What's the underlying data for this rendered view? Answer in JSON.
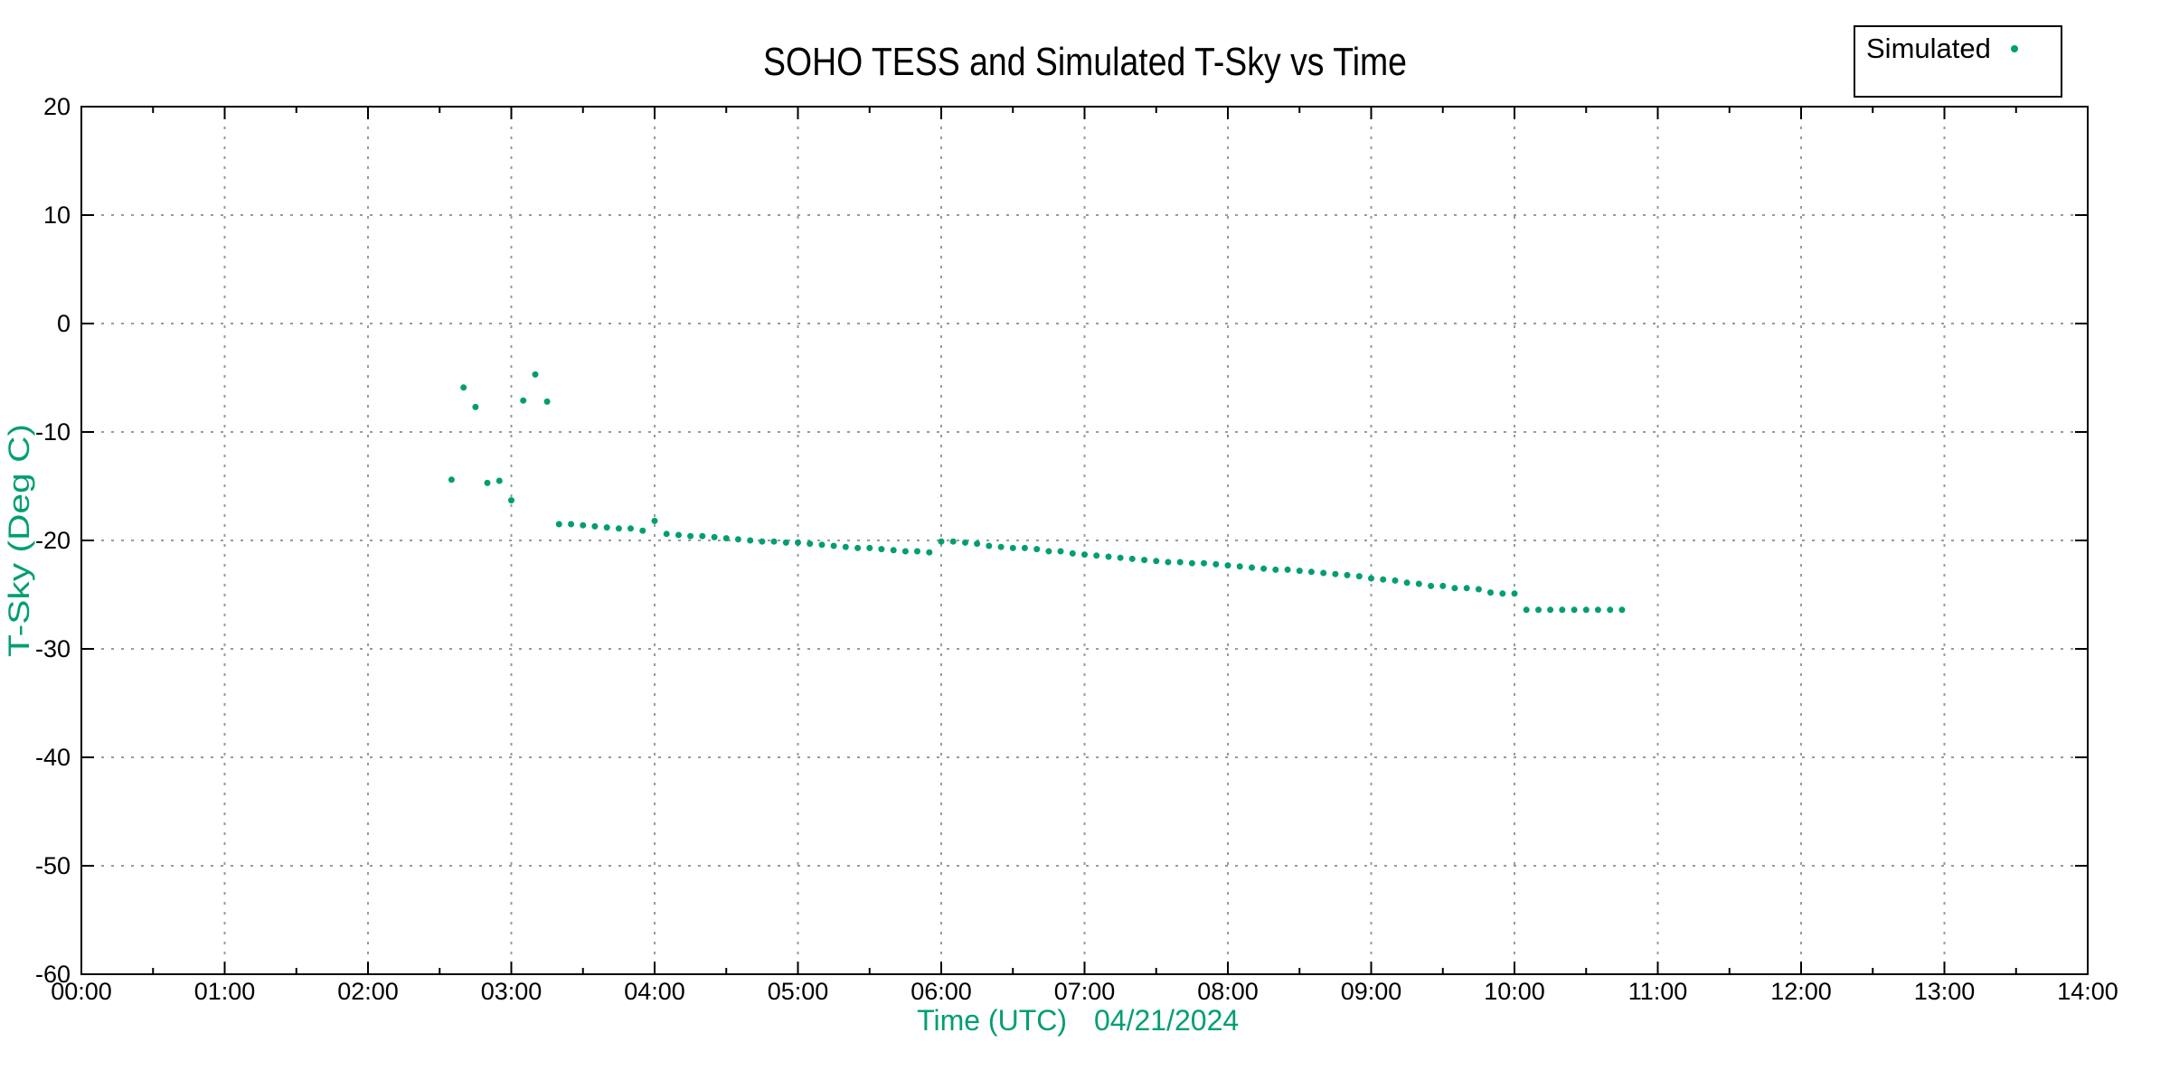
{
  "figure": {
    "background": "#ffffff",
    "text_color": "#000000",
    "accent_color": "#009e73",
    "grid_color": "#9a9a9a",
    "border_color": "#000000"
  },
  "legend": {
    "position": "top-right",
    "entries": [
      {
        "label": "Simulated",
        "marker": "dot-icon",
        "marker_color": "#009e73"
      }
    ]
  },
  "chart_data": {
    "type": "scatter",
    "title": "SOHO TESS and Simulated T-Sky vs Time",
    "xlabel": "Time (UTC)",
    "date_label": "04/21/2024",
    "ylabel": "T-Sky (Deg C)",
    "xlim_hours": [
      0,
      14
    ],
    "ylim": [
      -60,
      20
    ],
    "x_tick_labels": [
      "00:00",
      "01:00",
      "02:00",
      "03:00",
      "04:00",
      "05:00",
      "06:00",
      "07:00",
      "08:00",
      "09:00",
      "10:00",
      "11:00",
      "12:00",
      "13:00",
      "14:00"
    ],
    "x_minor_tick_interval_hours": 0.5,
    "y_tick_labels": [
      "20",
      "10",
      "0",
      "-10",
      "-20",
      "-30",
      "-40",
      "-50",
      "-60"
    ],
    "y_tick_interval": 10,
    "grid": "dotted",
    "legend_position": "top-right",
    "axis_label_color": "#009e73",
    "series": [
      {
        "name": "Simulated",
        "color": "#009e73",
        "marker": "dot",
        "points": [
          [
            2.583,
            -14.4
          ],
          [
            2.667,
            -5.9
          ],
          [
            2.75,
            -7.7
          ],
          [
            2.833,
            -14.7
          ],
          [
            2.917,
            -14.5
          ],
          [
            3.0,
            -16.3
          ],
          [
            3.083,
            -7.1
          ],
          [
            3.167,
            -4.7
          ],
          [
            3.25,
            -7.2
          ],
          [
            3.333,
            -18.5
          ],
          [
            3.417,
            -18.5
          ],
          [
            3.5,
            -18.6
          ],
          [
            3.583,
            -18.7
          ],
          [
            3.667,
            -18.8
          ],
          [
            3.75,
            -18.9
          ],
          [
            3.833,
            -18.9
          ],
          [
            3.917,
            -19.1
          ],
          [
            4.0,
            -18.2
          ],
          [
            4.083,
            -19.4
          ],
          [
            4.167,
            -19.5
          ],
          [
            4.25,
            -19.6
          ],
          [
            4.333,
            -19.6
          ],
          [
            4.417,
            -19.7
          ],
          [
            4.5,
            -19.8
          ],
          [
            4.583,
            -19.9
          ],
          [
            4.667,
            -20.0
          ],
          [
            4.75,
            -20.1
          ],
          [
            4.833,
            -20.1
          ],
          [
            4.917,
            -20.2
          ],
          [
            5.0,
            -20.2
          ],
          [
            5.083,
            -20.3
          ],
          [
            5.167,
            -20.4
          ],
          [
            5.25,
            -20.5
          ],
          [
            5.333,
            -20.6
          ],
          [
            5.417,
            -20.7
          ],
          [
            5.5,
            -20.7
          ],
          [
            5.583,
            -20.8
          ],
          [
            5.667,
            -20.9
          ],
          [
            5.75,
            -21.0
          ],
          [
            5.833,
            -21.0
          ],
          [
            5.917,
            -21.1
          ],
          [
            6.0,
            -20.1
          ],
          [
            6.083,
            -20.1
          ],
          [
            6.167,
            -20.2
          ],
          [
            6.25,
            -20.3
          ],
          [
            6.333,
            -20.5
          ],
          [
            6.417,
            -20.6
          ],
          [
            6.5,
            -20.7
          ],
          [
            6.583,
            -20.7
          ],
          [
            6.667,
            -20.8
          ],
          [
            6.75,
            -21.0
          ],
          [
            6.833,
            -21.0
          ],
          [
            6.917,
            -21.2
          ],
          [
            7.0,
            -21.3
          ],
          [
            7.083,
            -21.4
          ],
          [
            7.167,
            -21.5
          ],
          [
            7.25,
            -21.6
          ],
          [
            7.333,
            -21.7
          ],
          [
            7.417,
            -21.8
          ],
          [
            7.5,
            -21.9
          ],
          [
            7.583,
            -22.0
          ],
          [
            7.667,
            -22.0
          ],
          [
            7.75,
            -22.1
          ],
          [
            7.833,
            -22.1
          ],
          [
            7.917,
            -22.2
          ],
          [
            8.0,
            -22.3
          ],
          [
            8.083,
            -22.4
          ],
          [
            8.167,
            -22.5
          ],
          [
            8.25,
            -22.6
          ],
          [
            8.333,
            -22.7
          ],
          [
            8.417,
            -22.7
          ],
          [
            8.5,
            -22.8
          ],
          [
            8.583,
            -22.9
          ],
          [
            8.667,
            -23.0
          ],
          [
            8.75,
            -23.1
          ],
          [
            8.833,
            -23.2
          ],
          [
            8.917,
            -23.3
          ],
          [
            9.0,
            -23.5
          ],
          [
            9.083,
            -23.6
          ],
          [
            9.167,
            -23.7
          ],
          [
            9.25,
            -23.9
          ],
          [
            9.333,
            -24.0
          ],
          [
            9.417,
            -24.2
          ],
          [
            9.5,
            -24.2
          ],
          [
            9.583,
            -24.4
          ],
          [
            9.667,
            -24.4
          ],
          [
            9.75,
            -24.5
          ],
          [
            9.833,
            -24.8
          ],
          [
            9.917,
            -24.9
          ],
          [
            10.0,
            -24.9
          ],
          [
            10.083,
            -26.4
          ],
          [
            10.167,
            -26.4
          ],
          [
            10.25,
            -26.4
          ],
          [
            10.333,
            -26.4
          ],
          [
            10.417,
            -26.4
          ],
          [
            10.5,
            -26.4
          ],
          [
            10.583,
            -26.4
          ],
          [
            10.667,
            -26.4
          ],
          [
            10.75,
            -26.4
          ]
        ]
      }
    ]
  }
}
